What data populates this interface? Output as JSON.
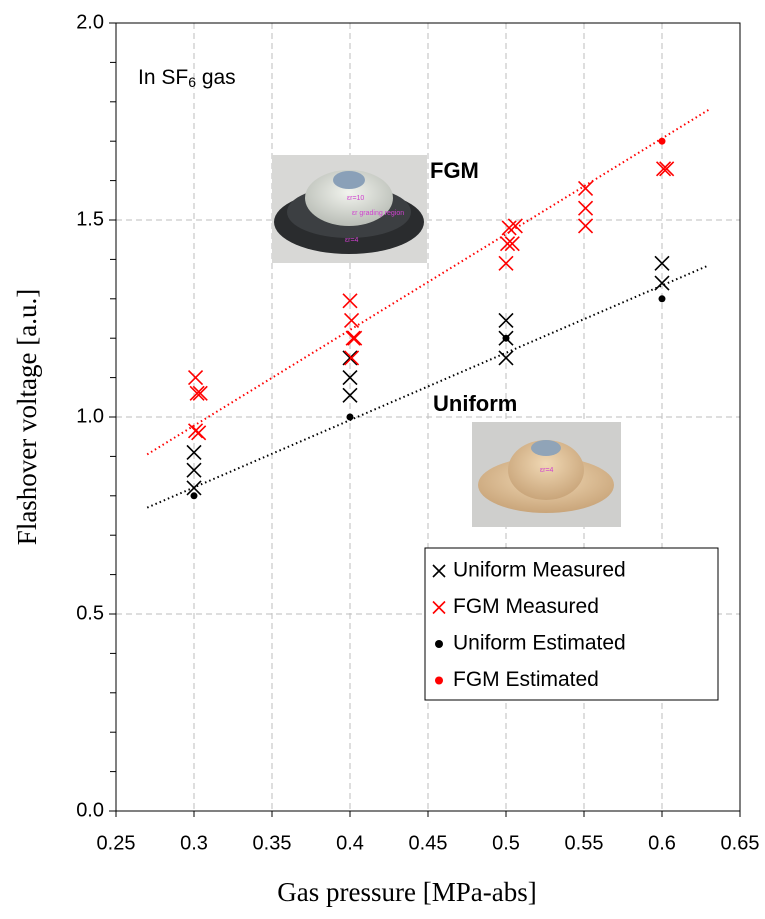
{
  "chart_data": {
    "type": "scatter",
    "xlabel": "Gas pressure [MPa-abs]",
    "ylabel": "Flashover voltage  [a.u.]",
    "xlim": [
      0.25,
      0.65
    ],
    "ylim": [
      0,
      2
    ],
    "xticks": [
      0.25,
      0.3,
      0.35,
      0.4,
      0.45,
      0.5,
      0.55,
      0.6,
      0.65
    ],
    "yticks": [
      {
        "value": 0,
        "label": "0.0"
      },
      0.5,
      {
        "value": 1,
        "label": "1.0"
      },
      1.5,
      {
        "value": 2,
        "label": "2.0"
      }
    ],
    "yminorticks": [
      0.1,
      0.2,
      0.3,
      0.4,
      0.6,
      0.7,
      0.8,
      0.9,
      1.1,
      1.2,
      1.3,
      1.4,
      1.6,
      1.7,
      1.8,
      1.9
    ],
    "grid": true,
    "legend": "lower right",
    "series": [
      {
        "name": "Uniform Measured",
        "color": "#000000",
        "marker": "x",
        "x": [
          0.3,
          0.3,
          0.3,
          0.4,
          0.4,
          0.4,
          0.5,
          0.5,
          0.5,
          0.6,
          0.6
        ],
        "values": [
          0.82,
          0.865,
          0.91,
          1.055,
          1.1,
          1.15,
          1.15,
          1.2,
          1.245,
          1.34,
          1.39
        ]
      },
      {
        "name": "FGM Measured",
        "color": "#ff0000",
        "marker": "x",
        "x": [
          0.301,
          0.302,
          0.304,
          0.301,
          0.303,
          0.4,
          0.401,
          0.402,
          0.403,
          0.401,
          0.5,
          0.501,
          0.502,
          0.504,
          0.506,
          0.551,
          0.551,
          0.551,
          0.601,
          0.603
        ],
        "values": [
          1.1,
          1.06,
          1.06,
          0.965,
          0.96,
          1.295,
          1.245,
          1.2,
          1.2,
          1.15,
          1.39,
          1.44,
          1.48,
          1.44,
          1.485,
          1.58,
          1.53,
          1.485,
          1.63,
          1.63
        ]
      },
      {
        "name": "Uniform Estimated",
        "color": "#000000",
        "marker": "dot",
        "x": [
          0.3,
          0.4,
          0.5,
          0.6
        ],
        "values": [
          0.8,
          1.0,
          1.2,
          1.3
        ]
      },
      {
        "name": "FGM Estimated",
        "color": "#ff0000",
        "marker": "dot",
        "x": [
          0.6
        ],
        "values": [
          1.7
        ]
      }
    ],
    "trendlines": [
      {
        "color": "#ff0000",
        "x": [
          0.27,
          0.63
        ],
        "values": [
          0.905,
          1.78
        ]
      },
      {
        "color": "#000000",
        "x": [
          0.27,
          0.63
        ],
        "values": [
          0.77,
          1.385
        ]
      }
    ],
    "annotation": {
      "prefix": "In SF",
      "subscript": "6",
      "suffix": " gas"
    },
    "labels": [
      {
        "text": "FGM",
        "color": "#ff0000"
      },
      {
        "text": "Uniform",
        "color": "#000000"
      }
    ],
    "photos": [
      {
        "labels": [
          "εr=10",
          "εr grading region",
          "εr=4"
        ]
      },
      {
        "labels": [
          "εr=4"
        ]
      }
    ]
  }
}
